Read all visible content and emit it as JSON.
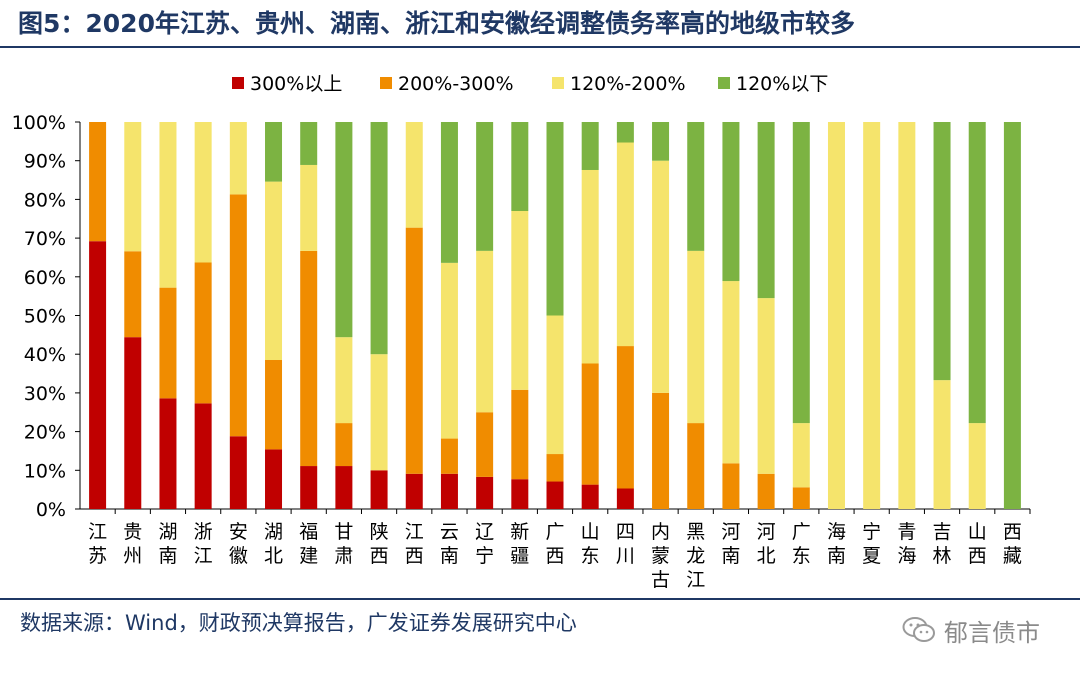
{
  "title": "图5：2020年江苏、贵州、湖南、浙江和安徽经调整债务率高的地级市较多",
  "source": "数据来源：Wind，财政预决算报告，广发证券发展研究中心",
  "watermark": "郁言债市",
  "chart_data": {
    "type": "bar",
    "stacked": true,
    "percent": true,
    "ylim": [
      0,
      100
    ],
    "yticks": [
      "0%",
      "10%",
      "20%",
      "30%",
      "40%",
      "50%",
      "60%",
      "70%",
      "80%",
      "90%",
      "100%"
    ],
    "legend_position": "top",
    "categories": [
      "江苏",
      "贵州",
      "湖南",
      "浙江",
      "安徽",
      "湖北",
      "福建",
      "甘肃",
      "陕西",
      "江西",
      "云南",
      "辽宁",
      "新疆",
      "广西",
      "山东",
      "四川",
      "内蒙古",
      "黑龙江",
      "河南",
      "河北",
      "广东",
      "海南",
      "宁夏",
      "青海",
      "吉林",
      "山西",
      "西藏"
    ],
    "series": [
      {
        "name": "300%以上",
        "color": "#c00000",
        "values": [
          69.2,
          44.4,
          28.6,
          27.3,
          18.8,
          15.4,
          11.1,
          11.1,
          10.0,
          9.1,
          9.1,
          8.3,
          7.7,
          7.1,
          6.3,
          5.3,
          0,
          0,
          0,
          0,
          0,
          0,
          0,
          0,
          0,
          0,
          0
        ]
      },
      {
        "name": "200%-300%",
        "color": "#f08c00",
        "values": [
          30.8,
          22.2,
          28.6,
          36.4,
          62.5,
          23.1,
          55.6,
          11.1,
          0,
          63.6,
          9.1,
          16.7,
          23.1,
          7.1,
          31.3,
          36.8,
          30.0,
          22.2,
          11.8,
          9.1,
          5.6,
          0,
          0,
          0,
          0,
          0,
          0
        ]
      },
      {
        "name": "120%-200%",
        "color": "#f5e46c",
        "values": [
          0,
          33.4,
          42.8,
          36.3,
          18.7,
          46.1,
          22.2,
          22.2,
          30.0,
          27.3,
          45.4,
          41.7,
          46.2,
          35.8,
          50.0,
          52.6,
          60.0,
          44.5,
          47.1,
          45.4,
          16.6,
          100,
          100,
          100,
          33.3,
          22.2,
          0
        ]
      },
      {
        "name": "120%以下",
        "color": "#7cb342",
        "values": [
          0,
          0,
          0,
          0,
          0,
          15.4,
          11.1,
          55.6,
          60.0,
          0,
          36.4,
          33.3,
          23.0,
          50.0,
          12.4,
          5.3,
          10.0,
          33.3,
          41.1,
          45.5,
          77.8,
          0,
          0,
          0,
          66.7,
          77.8,
          100
        ]
      }
    ]
  }
}
